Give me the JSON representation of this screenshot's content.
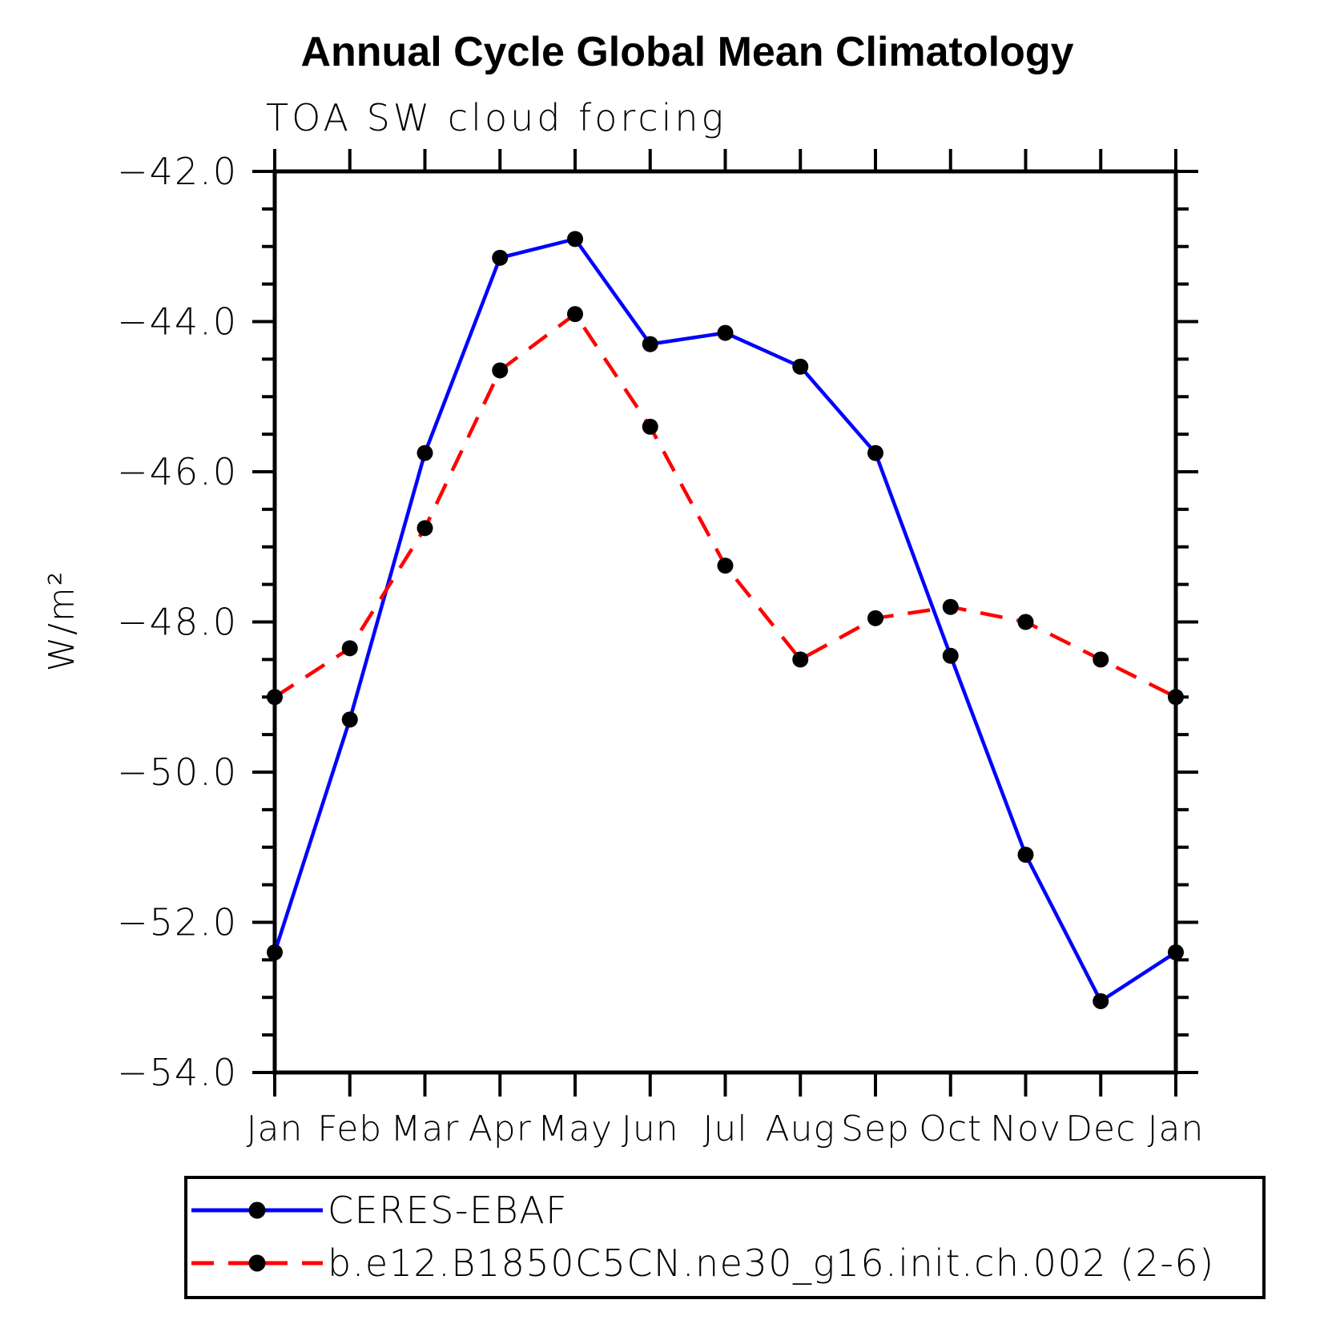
{
  "page": {
    "background_color": "#ffffff",
    "text_color": "#000000"
  },
  "chart_data": {
    "type": "line",
    "title": "Annual Cycle Global Mean Climatology",
    "subtitle": "TOA SW cloud forcing",
    "xlabel": "",
    "ylabel": "W/m²",
    "categories": [
      "Jan",
      "Feb",
      "Mar",
      "Apr",
      "May",
      "Jun",
      "Jul",
      "Aug",
      "Sep",
      "Oct",
      "Nov",
      "Dec",
      "Jan"
    ],
    "ylim": [
      -54.0,
      -42.0
    ],
    "ytick_major_interval": 2.0,
    "ytick_minor_interval": 0.5,
    "ytick_labels": [
      "−42.0",
      "−44.0",
      "−46.0",
      "−48.0",
      "−50.0",
      "−52.0",
      "−54.0"
    ],
    "ytick_values": [
      -42.0,
      -44.0,
      -46.0,
      -48.0,
      -50.0,
      -52.0,
      -54.0
    ],
    "grid": false,
    "legend_position": "bottom",
    "marker_color": "#000000",
    "series": [
      {
        "name": "CERES-EBAF",
        "color": "#0000ff",
        "line_style": "solid",
        "marker": "circle",
        "values": [
          -52.4,
          -49.3,
          -45.75,
          -43.15,
          -42.9,
          -44.3,
          -44.15,
          -44.6,
          -45.75,
          -48.45,
          -51.1,
          -53.05,
          -52.4
        ]
      },
      {
        "name": "b.e12.B1850C5CN.ne30_g16.init.ch.002 (2-6)",
        "color": "#ff0000",
        "line_style": "dashed",
        "marker": "circle",
        "values": [
          -49.0,
          -48.35,
          -46.75,
          -44.65,
          -43.9,
          -45.4,
          -47.25,
          -48.5,
          -47.95,
          -47.8,
          -48.0,
          -48.5,
          -49.0
        ]
      }
    ]
  }
}
